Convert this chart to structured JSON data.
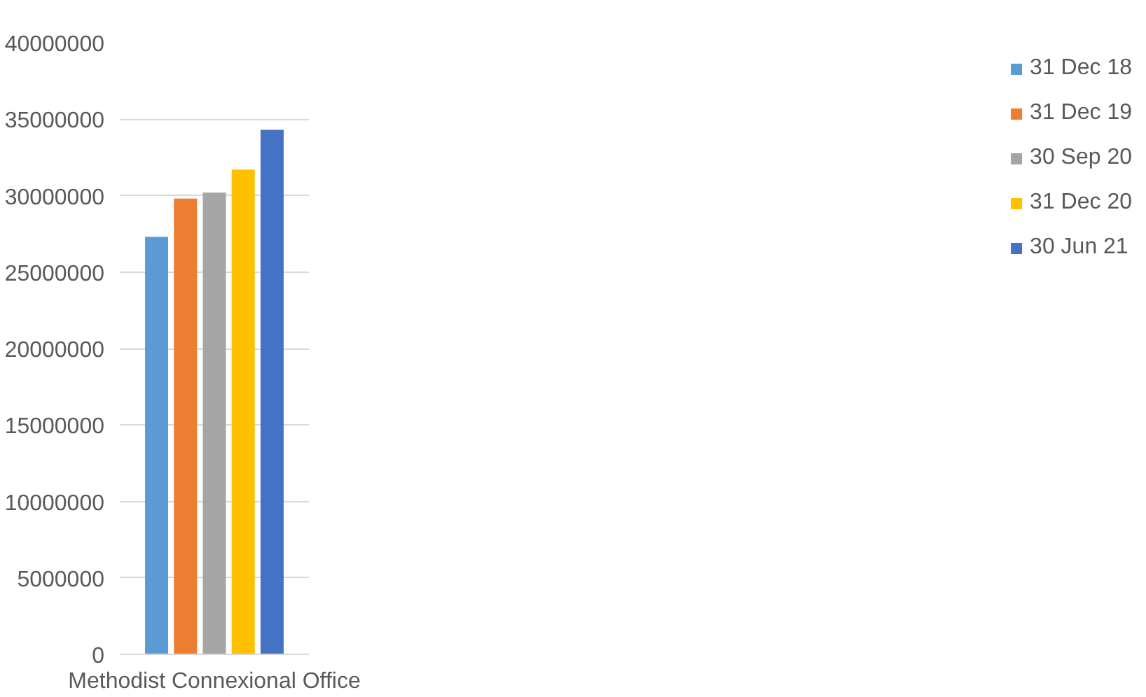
{
  "chart_data": {
    "type": "bar",
    "categories": [
      "Methodist Connexional Office"
    ],
    "series": [
      {
        "name": "31 Dec 18",
        "color": "#5b9bd5",
        "values": [
          27300000
        ]
      },
      {
        "name": "31 Dec 19",
        "color": "#ed7d31",
        "values": [
          29800000
        ]
      },
      {
        "name": "30 Sep 20",
        "color": "#a5a5a5",
        "values": [
          30200000
        ]
      },
      {
        "name": "31 Dec 20",
        "color": "#ffc000",
        "values": [
          31700000
        ]
      },
      {
        "name": "30 Jun 21",
        "color": "#4472c4",
        "values": [
          34300000
        ]
      }
    ],
    "ylim": [
      0,
      40000000
    ],
    "yticks": [
      0,
      5000000,
      10000000,
      15000000,
      20000000,
      25000000,
      30000000,
      35000000,
      40000000
    ],
    "grid": "y",
    "legend": "right"
  }
}
